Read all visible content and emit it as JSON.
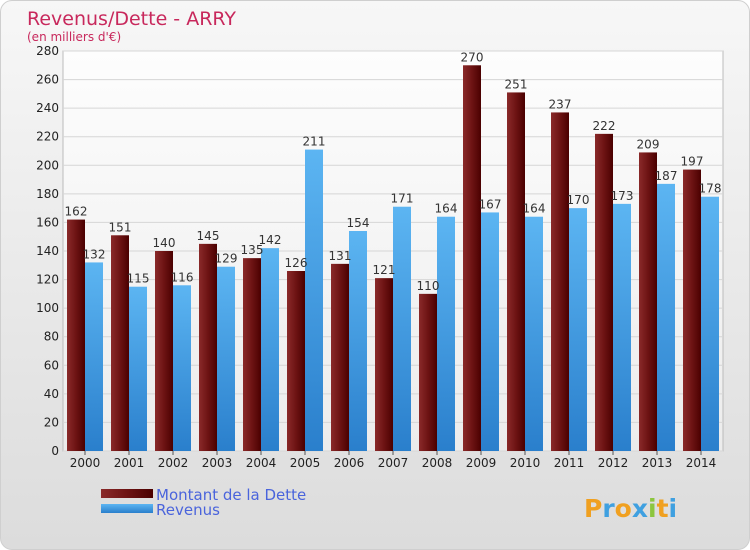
{
  "chart_data": {
    "type": "bar",
    "title": "Revenus/Dette - ARRY",
    "subtitle": "(en milliers d'€)",
    "categories": [
      "2000",
      "2001",
      "2002",
      "2003",
      "2004",
      "2005",
      "2006",
      "2007",
      "2008",
      "2009",
      "2010",
      "2011",
      "2012",
      "2013",
      "2014"
    ],
    "series": [
      {
        "name": "Montant de la Dette",
        "color": "#7b0f0f",
        "values": [
          162,
          151,
          140,
          145,
          135,
          126,
          131,
          121,
          110,
          270,
          251,
          237,
          222,
          209,
          197
        ]
      },
      {
        "name": "Revenus",
        "color": "#3a9ae8",
        "values": [
          132,
          115,
          116,
          129,
          142,
          211,
          154,
          171,
          164,
          167,
          164,
          170,
          173,
          187,
          178
        ]
      }
    ],
    "ylim": [
      0,
      280
    ],
    "yticks": [
      0,
      20,
      40,
      60,
      80,
      100,
      120,
      140,
      160,
      180,
      200,
      220,
      240,
      260,
      280
    ],
    "grid": true,
    "legend_position": "bottom-left",
    "logo_text": "Proxiti"
  }
}
